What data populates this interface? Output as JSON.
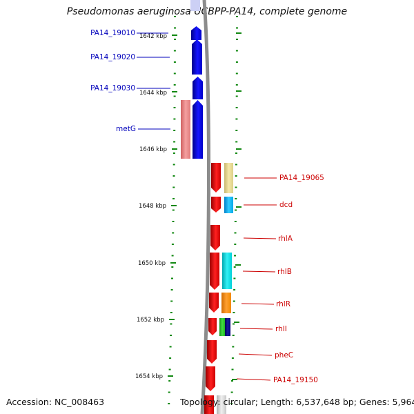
{
  "title": "Pseudomonas aeruginosa UCBPP-PA14, complete genome",
  "footer": {
    "accession": "Accession: NC_008463",
    "topology": "Topology: circular; Length: 6,537,648 bp; Genes: 5,964"
  },
  "ruler_labels": [
    "1642 kbp",
    "1644 kbp",
    "1646 kbp",
    "1648 kbp",
    "1650 kbp",
    "1652 kbp",
    "1654 kbp"
  ],
  "genes_left": [
    "PA14_19010",
    "PA14_19020",
    "PA14_19030",
    "metG"
  ],
  "genes_right": [
    "PA14_19065",
    "dcd",
    "rhlA",
    "rhlB",
    "rhlR",
    "rhlI",
    "pheC",
    "PA14_19150"
  ],
  "colors": {
    "left_label": "#0000bb",
    "right_label": "#cc0000",
    "forward_gene": "#0000ee",
    "reverse_gene": "#ee0000",
    "backbone": "#888888",
    "ruler": "#118811"
  }
}
